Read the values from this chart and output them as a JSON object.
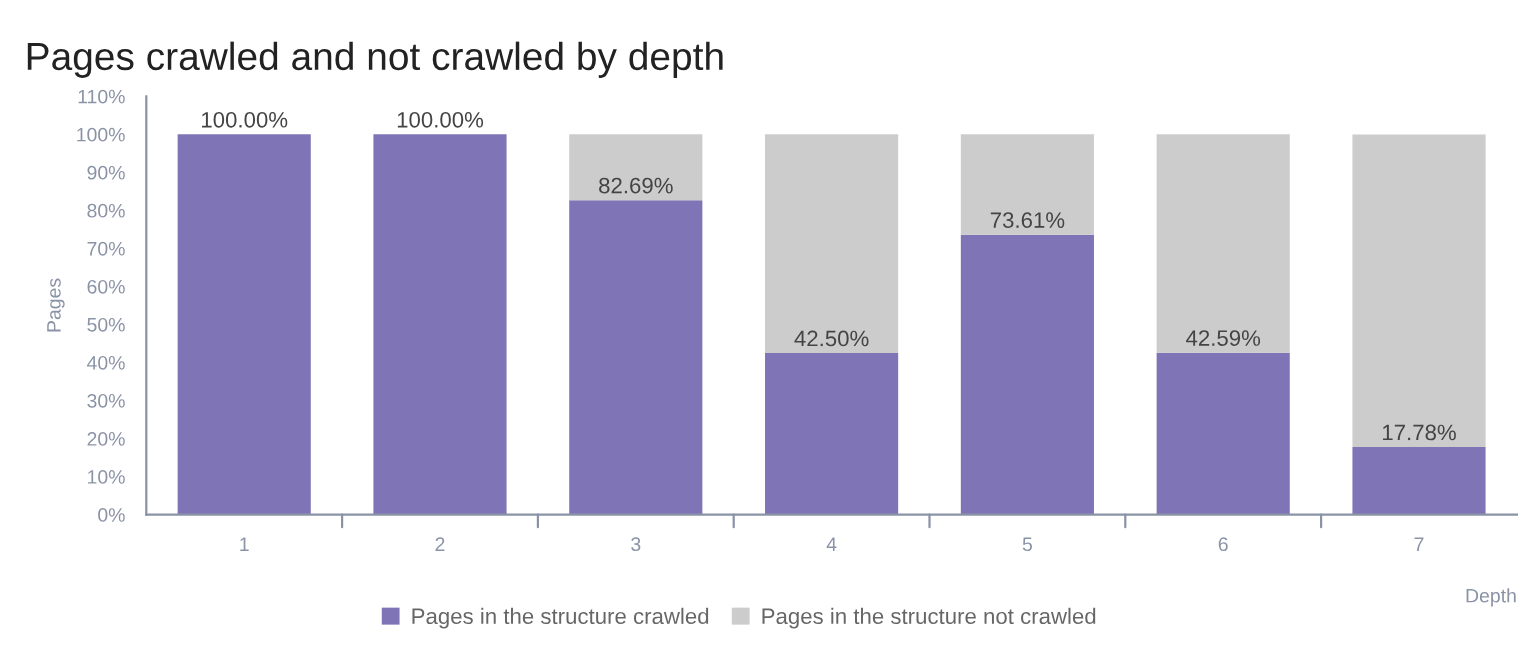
{
  "chart_data": {
    "type": "bar",
    "title": "Pages crawled and not crawled by depth",
    "xlabel": "Depth",
    "ylabel": "Pages",
    "categories": [
      "1",
      "2",
      "3",
      "4",
      "5",
      "6",
      "7"
    ],
    "stacked": true,
    "series": [
      {
        "name": "Pages in the structure crawled",
        "color": "#7f74b6",
        "values": [
          100,
          100,
          82.69,
          42.5,
          73.61,
          42.59,
          17.78
        ],
        "value_labels": [
          "100.00%",
          "100.00%",
          "82.69%",
          "42.50%",
          "73.61%",
          "42.59%",
          "17.78%"
        ]
      },
      {
        "name": "Pages in the structure not crawled",
        "color": "#cccccc",
        "values": [
          0,
          0,
          17.3,
          57.5,
          26.4,
          57.4,
          82.2
        ]
      }
    ],
    "ylim": [
      0,
      110
    ],
    "yticks": [
      {
        "value": 0,
        "label": "0%"
      },
      {
        "value": 10,
        "label": "10%"
      },
      {
        "value": 20,
        "label": "20%"
      },
      {
        "value": 30,
        "label": "30%"
      },
      {
        "value": 40,
        "label": "40%"
      },
      {
        "value": 50,
        "label": "50%"
      },
      {
        "value": 60,
        "label": "60%"
      },
      {
        "value": 70,
        "label": "70%"
      },
      {
        "value": 80,
        "label": "80%"
      },
      {
        "value": 90,
        "label": "90%"
      },
      {
        "value": 100,
        "label": "100%"
      },
      {
        "value": 110,
        "label": "110%"
      }
    ],
    "grid": false,
    "legend": "bottom"
  }
}
